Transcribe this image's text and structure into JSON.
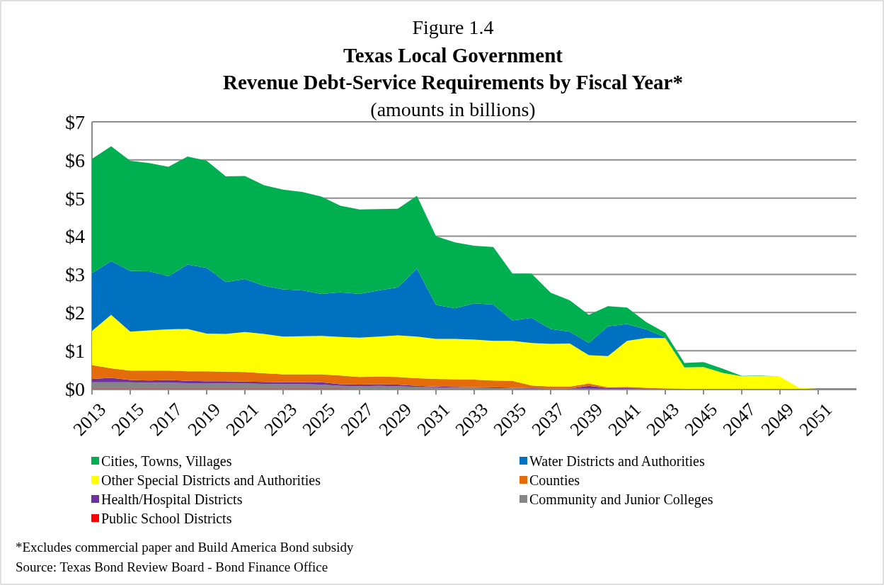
{
  "chart_data": {
    "type": "area",
    "stacked": true,
    "title": "Texas Local Government\nRevenue Debt-Service Requirements by Fiscal Year*",
    "subtitle": "(amounts in billions)",
    "annotations": [
      "Figure 1.4",
      "*Excludes commercial paper and Build America Bond subsidy",
      "Source: Texas Bond Review Board - Bond Finance Office"
    ],
    "categories": [
      "2013",
      null,
      "2015",
      null,
      "2017",
      null,
      "2019",
      null,
      "2021",
      null,
      "2023",
      null,
      "2025",
      null,
      "2027",
      null,
      "2029",
      null,
      "2031",
      null,
      "2033",
      null,
      "2035",
      null,
      "2037",
      null,
      "2039",
      null,
      "2041",
      null,
      "2043",
      null,
      "2045",
      null,
      "2047",
      null,
      "2049",
      null,
      "2051",
      null
    ],
    "ylim": [
      0,
      7
    ],
    "yticks": [
      {
        "value": 0,
        "label": "$0"
      },
      {
        "value": 1,
        "label": "$1"
      },
      {
        "value": 2,
        "label": "$2"
      },
      {
        "value": 3,
        "label": "$3"
      },
      {
        "value": 4,
        "label": "$4"
      },
      {
        "value": 5,
        "label": "$5"
      },
      {
        "value": 6,
        "label": "$6"
      },
      {
        "value": 7,
        "label": "$7"
      }
    ],
    "grid": "y",
    "legend": "bottom",
    "series": [
      {
        "name": "Public School Districts",
        "color": "#ff0000",
        "values": [
          0.01,
          0.01,
          0.01,
          0.01,
          0.01,
          0.01,
          0.01,
          0.01,
          0.01,
          0.01,
          0.01,
          0.01,
          0.01,
          0.01,
          0,
          0,
          0,
          0,
          0,
          0,
          0,
          0,
          0,
          0,
          0,
          0,
          0,
          0,
          0,
          0,
          0,
          0,
          0,
          0,
          0,
          0,
          0,
          0,
          0,
          0
        ]
      },
      {
        "name": "Community and Junior Colleges",
        "color": "#868686",
        "values": [
          0.16,
          0.16,
          0.16,
          0.15,
          0.15,
          0.14,
          0.14,
          0.13,
          0.13,
          0.12,
          0.11,
          0.11,
          0.1,
          0.07,
          0.07,
          0.08,
          0.07,
          0.05,
          0.04,
          0.03,
          0.03,
          0.02,
          0.02,
          0.01,
          0.01,
          0.01,
          0.01,
          0,
          0,
          0,
          0,
          0,
          0,
          0,
          0,
          0,
          0,
          0,
          0,
          0
        ]
      },
      {
        "name": "Health/Hospital Districts",
        "color": "#7030a0",
        "values": [
          0.09,
          0.12,
          0.06,
          0.06,
          0.07,
          0.06,
          0.05,
          0.06,
          0.05,
          0.05,
          0.05,
          0.05,
          0.06,
          0.04,
          0.04,
          0.04,
          0.04,
          0.03,
          0.02,
          0.02,
          0.01,
          0.02,
          0.01,
          0.01,
          0,
          0,
          0.07,
          0.02,
          0.02,
          0.01,
          0,
          0,
          0,
          0,
          0,
          0,
          0,
          0,
          0,
          0
        ]
      },
      {
        "name": "Counties",
        "color": "#e46c0a",
        "values": [
          0.36,
          0.25,
          0.25,
          0.26,
          0.25,
          0.25,
          0.26,
          0.25,
          0.25,
          0.23,
          0.21,
          0.21,
          0.21,
          0.23,
          0.2,
          0.2,
          0.2,
          0.2,
          0.2,
          0.2,
          0.2,
          0.18,
          0.18,
          0.07,
          0.05,
          0.05,
          0.06,
          0.02,
          0.03,
          0.02,
          0.01,
          0,
          0,
          0,
          0,
          0,
          0,
          0,
          0,
          0
        ]
      },
      {
        "name": "Other Special Districts and Authorities",
        "color": "#ffff00",
        "values": [
          0.9,
          1.4,
          1.02,
          1.05,
          1.08,
          1.11,
          0.99,
          0.99,
          1.05,
          1.03,
          0.99,
          1.0,
          1.01,
          1.01,
          1.03,
          1.05,
          1.09,
          1.09,
          1.05,
          1.06,
          1.05,
          1.04,
          1.05,
          1.11,
          1.12,
          1.13,
          0.74,
          0.82,
          1.21,
          1.3,
          1.32,
          0.56,
          0.57,
          0.42,
          0.33,
          0.34,
          0.32,
          0.03,
          0,
          0
        ]
      },
      {
        "name": "Water Districts and Authorities",
        "color": "#0070c0",
        "values": [
          1.51,
          1.41,
          1.59,
          1.55,
          1.39,
          1.69,
          1.72,
          1.36,
          1.39,
          1.26,
          1.24,
          1.2,
          1.1,
          1.17,
          1.15,
          1.21,
          1.26,
          1.78,
          0.89,
          0.8,
          0.95,
          0.95,
          0.53,
          0.66,
          0.39,
          0.31,
          0.32,
          0.78,
          0.44,
          0.23,
          0.02,
          0,
          0,
          0,
          0,
          0,
          0,
          0,
          0,
          0
        ]
      },
      {
        "name": "Cities, Towns, Villages",
        "color": "#00b050",
        "values": [
          3.0,
          3.01,
          2.89,
          2.84,
          2.87,
          2.83,
          2.81,
          2.77,
          2.7,
          2.64,
          2.61,
          2.58,
          2.55,
          2.27,
          2.21,
          2.13,
          2.06,
          1.91,
          1.8,
          1.73,
          1.51,
          1.51,
          1.23,
          1.16,
          0.95,
          0.82,
          0.74,
          0.53,
          0.43,
          0.19,
          0.12,
          0.12,
          0.13,
          0.11,
          0.01,
          0.01,
          0,
          0,
          0,
          0
        ]
      }
    ]
  }
}
